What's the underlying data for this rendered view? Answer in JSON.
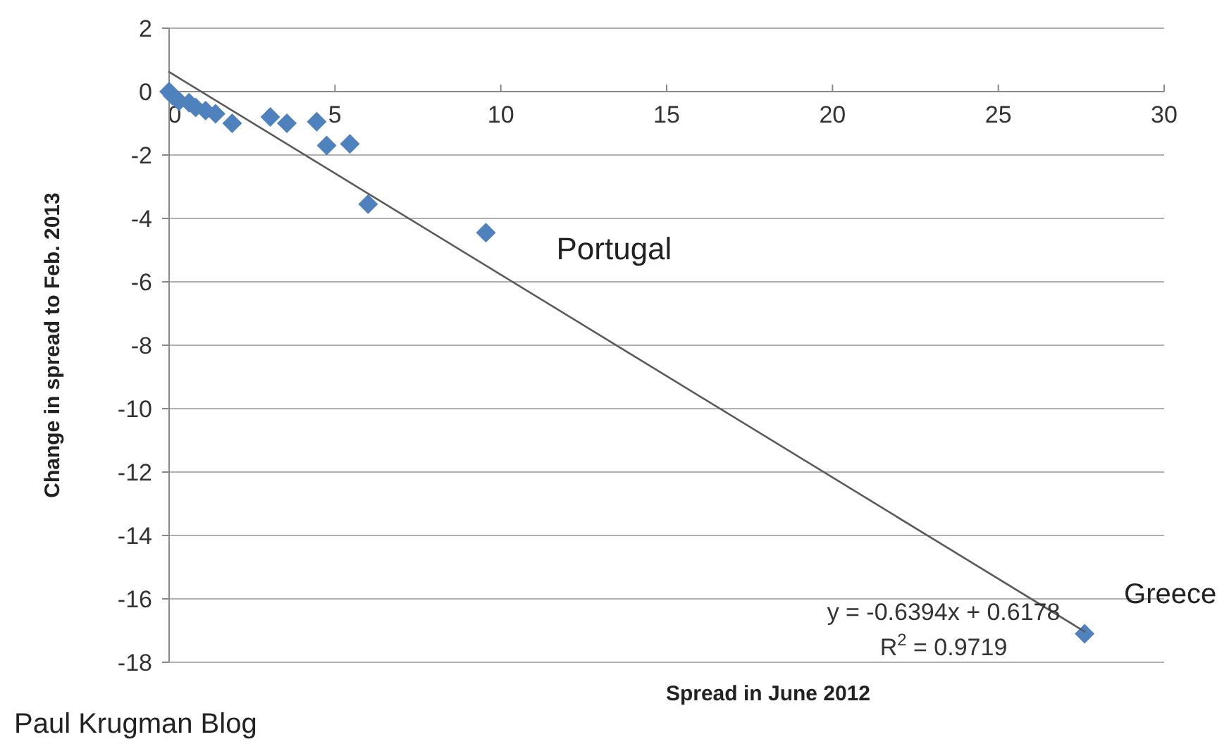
{
  "chart_data": {
    "type": "scatter",
    "xlabel": "Spread in June 2012",
    "ylabel": "Change in spread to Feb. 2013",
    "xlim": [
      0,
      30
    ],
    "xticks": [
      0,
      5,
      10,
      15,
      20,
      25,
      30
    ],
    "ylim": [
      -18,
      2
    ],
    "yticks": [
      2,
      0,
      -2,
      -4,
      -6,
      -8,
      -10,
      -12,
      -14,
      -16,
      -18
    ],
    "grid": "y",
    "marker": "diamond",
    "series": [
      {
        "color": "#4f81bd",
        "x": [
          0,
          0.1,
          0.3,
          0.6,
          0.8,
          1.1,
          1.4,
          1.9,
          3.05,
          3.55,
          4.45,
          4.75,
          5.45,
          6.0,
          9.55,
          27.6
        ],
        "values": [
          0,
          -0.13,
          -0.3,
          -0.35,
          -0.5,
          -0.6,
          -0.7,
          -1.0,
          -0.8,
          -1.0,
          -0.95,
          -1.7,
          -1.65,
          -3.55,
          -4.45,
          -17.1
        ]
      },
      {
        "type": "line",
        "color": "#5a5a5a",
        "line_style": "solid",
        "marker": "none",
        "x": [
          0,
          27.6
        ],
        "values": [
          0.62,
          -17.03
        ]
      }
    ],
    "annotations": [
      {
        "text": "Portugal",
        "x": 9.55,
        "y": -4.45
      },
      {
        "text": "Greece",
        "x": 27.6,
        "y": -17.1
      },
      "y = -0.6394x + 0.6178",
      "R$^{2}$ = 0.9719",
      "Paul Krugman Blog"
    ]
  }
}
